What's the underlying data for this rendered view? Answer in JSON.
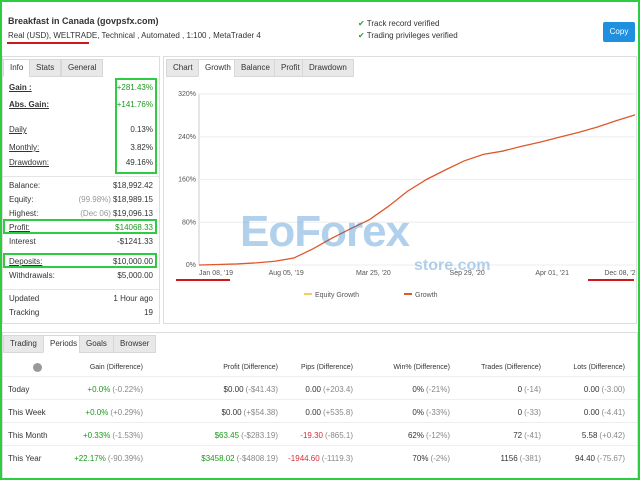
{
  "header": {
    "title": "Breakfast in Canada (govpsfx.com)",
    "account": "Real (USD), WELTRADE",
    "details": ", Technical , Automated , 1:100 , MetaTrader 4",
    "checks": [
      "Track record verified",
      "Trading privileges verified"
    ],
    "copy": "Copy"
  },
  "info_tabs": [
    "Info",
    "Stats",
    "General"
  ],
  "stats": [
    {
      "label": "Gain :",
      "value": "+281.43%",
      "color": "#1a9a1a"
    },
    {
      "label": "Abs. Gain:",
      "value": "+141.76%",
      "color": "#1a9a1a"
    },
    {
      "label": "Daily",
      "value": "0.13%"
    },
    {
      "label": "Monthly:",
      "value": "3.82%"
    },
    {
      "label": "Drawdown:",
      "value": "49.16%"
    },
    {
      "label": "Balance:",
      "value": "$18,992.42"
    },
    {
      "label": "Equity:",
      "prefix": "(99.98%)",
      "value": "$18,989.15"
    },
    {
      "label": "Highest:",
      "prefix": "(Dec 06)",
      "value": "$19,096.13"
    },
    {
      "label": "Profit:",
      "value": "$14068.33",
      "color": "#1a9a1a"
    },
    {
      "label": "Interest",
      "value": "-$1241.33"
    },
    {
      "label": "Deposits:",
      "value": "$10,000.00"
    },
    {
      "label": "Withdrawals:",
      "value": "$5,000.00"
    },
    {
      "label": "Updated",
      "value": "1 Hour ago"
    },
    {
      "label": "Tracking",
      "value": "19"
    }
  ],
  "chart_tabs": [
    "Chart",
    "Growth",
    "Balance",
    "Profit",
    "Drawdown"
  ],
  "chart": {
    "type": "line",
    "ylim": [
      0,
      320
    ],
    "yticks": [
      {
        "value": 0,
        "label": "0%"
      },
      {
        "value": 80,
        "label": "80%"
      },
      {
        "value": 160,
        "label": "160%"
      },
      {
        "value": 240,
        "label": "240%"
      },
      {
        "value": 320,
        "label": "320%"
      }
    ],
    "xticks": [
      "Jan 08, '19",
      "Aug 05, '19",
      "Mar 25, '20",
      "Sep 29, '20",
      "Apr 01, '21",
      "Dec 08, '21"
    ],
    "legend": [
      {
        "name": "Equity Growth",
        "color": "#f0d060"
      },
      {
        "name": "Growth",
        "color": "#e0572b"
      }
    ],
    "series": [
      {
        "name": "Growth",
        "color": "#e0572b",
        "values": [
          0,
          1,
          2,
          4,
          7,
          13,
          30,
          50,
          68,
          85,
          110,
          138,
          160,
          178,
          195,
          207,
          213,
          222,
          230,
          239,
          248,
          258,
          270,
          281
        ]
      }
    ]
  },
  "watermark": {
    "brand": "EoForex",
    "site": "store.com"
  },
  "period_tabs": [
    "Trading",
    "Periods",
    "Goals",
    "Browser"
  ],
  "table": {
    "columns": [
      "Gain (Difference)",
      "Profit (Difference)",
      "Pips (Difference)",
      "Win% (Difference)",
      "Trades (Difference)",
      "Lots (Difference)"
    ],
    "rows": [
      {
        "label": "Today",
        "cells": [
          {
            "value": "+0.0%",
            "diff": "(-0.22%)",
            "color": "#1a9a1a"
          },
          {
            "value": "$0.00",
            "diff": "(-$41.43)"
          },
          {
            "value": "0.00",
            "diff": "(+203.4)"
          },
          {
            "value": "0%",
            "diff": "(-21%)"
          },
          {
            "value": "0",
            "diff": "(-14)"
          },
          {
            "value": "0.00",
            "diff": "(-3.00)"
          }
        ]
      },
      {
        "label": "This Week",
        "cells": [
          {
            "value": "+0.0%",
            "diff": "(+0.29%)",
            "color": "#1a9a1a"
          },
          {
            "value": "$0.00",
            "diff": "(+$54.38)"
          },
          {
            "value": "0.00",
            "diff": "(+535.8)"
          },
          {
            "value": "0%",
            "diff": "(-33%)"
          },
          {
            "value": "0",
            "diff": "(-33)"
          },
          {
            "value": "0.00",
            "diff": "(-4.41)"
          }
        ]
      },
      {
        "label": "This Month",
        "cells": [
          {
            "value": "+0.33%",
            "diff": "(-1.53%)",
            "color": "#1a9a1a"
          },
          {
            "value": "$63.45",
            "diff": "(-$283.19)",
            "color": "#1a9a1a"
          },
          {
            "value": "-19.30",
            "diff": "(-865.1)",
            "color": "#d0303a"
          },
          {
            "value": "62%",
            "diff": "(-12%)"
          },
          {
            "value": "72",
            "diff": "(-41)"
          },
          {
            "value": "5.58",
            "diff": "(+0.42)"
          }
        ]
      },
      {
        "label": "This Year",
        "cells": [
          {
            "value": "+22.17%",
            "diff": "(-90.39%)",
            "color": "#1a9a1a"
          },
          {
            "value": "$3458.02",
            "diff": "(-$4808.19)",
            "color": "#1a9a1a"
          },
          {
            "value": "-1944.60",
            "diff": "(-1119.3)",
            "color": "#d0303a"
          },
          {
            "value": "70%",
            "diff": "(-2%)"
          },
          {
            "value": "1156",
            "diff": "(-381)"
          },
          {
            "value": "94.40",
            "diff": "(-75.67)"
          }
        ]
      }
    ]
  }
}
